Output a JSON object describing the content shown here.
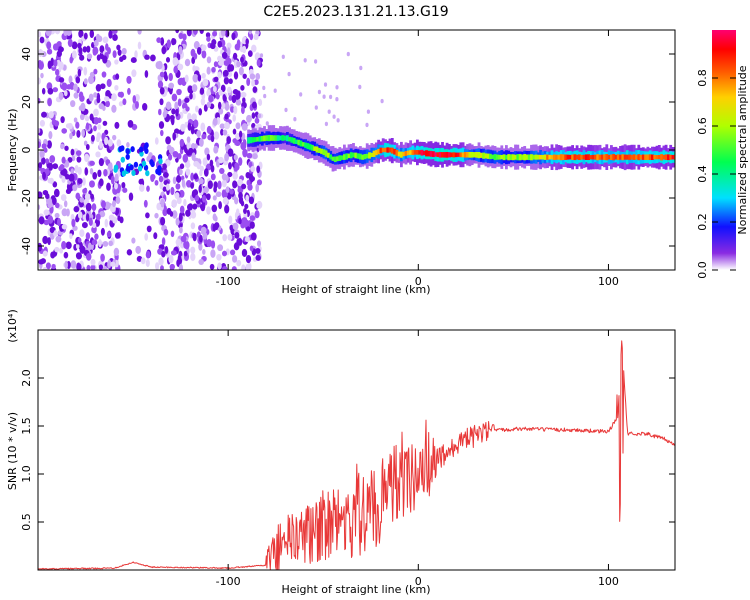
{
  "title": "C2E5.2023.131.21.13.G19",
  "chart_data": [
    {
      "type": "heatmap",
      "xlabel": "Height of straight line (km)",
      "ylabel": "Frequency (Hz)",
      "xlim": [
        -200,
        135
      ],
      "ylim": [
        -50,
        50
      ],
      "xticks": [
        -100,
        0,
        100
      ],
      "yticks": [
        -40,
        -20,
        0,
        20,
        40
      ],
      "colorbar": {
        "label": "Normalized spectral amplitude",
        "range": [
          0,
          1
        ],
        "ticks": [
          0.0,
          0.2,
          0.4,
          0.6,
          0.8
        ]
      },
      "noise_region": {
        "x": [
          -200,
          -83
        ],
        "y": [
          -50,
          50
        ],
        "gap": [
          -157,
          -136
        ]
      },
      "ridge": {
        "x": [
          -90,
          -80,
          -70,
          -60,
          -50,
          -45,
          -40,
          -35,
          -30,
          -25,
          -20,
          -15,
          -10,
          -5,
          0,
          10,
          20,
          30,
          40,
          50,
          60,
          70,
          80,
          90,
          100,
          110,
          120,
          135
        ],
        "frequency": [
          4,
          5,
          5,
          2,
          -1,
          -4,
          -3,
          -2,
          -3,
          -2,
          0,
          0,
          -2,
          -1,
          -1,
          -2,
          -2,
          -2,
          -3,
          -3,
          -3,
          -3,
          -3,
          -3,
          -3,
          -3,
          -3,
          -3
        ],
        "amplitude": [
          0.45,
          0.5,
          0.4,
          0.5,
          0.6,
          0.5,
          0.55,
          0.5,
          0.55,
          0.6,
          0.85,
          0.9,
          0.7,
          0.75,
          0.9,
          0.95,
          0.9,
          0.6,
          0.55,
          0.55,
          0.6,
          0.8,
          0.85,
          0.85,
          0.8,
          0.85,
          0.85,
          0.9
        ]
      }
    },
    {
      "type": "line",
      "xlabel": "Height of straight line (km)",
      "ylabel": "SNR (10 * v/v)",
      "yunit": "(x10⁴)",
      "xlim": [
        -200,
        135
      ],
      "ylim": [
        0,
        2.5
      ],
      "xticks": [
        -100,
        0,
        100
      ],
      "yticks": [
        0.5,
        1.0,
        1.5,
        2.0
      ],
      "ytick_labels": [
        "0.5",
        "1.0",
        "1.5",
        "2.0"
      ],
      "color": "#e83838",
      "series": [
        {
          "x": [
            -200,
            -160,
            -150,
            -140,
            -100,
            -80,
            -75,
            -70,
            -60,
            -50,
            -40,
            -30,
            -20,
            -10,
            0,
            10,
            20,
            30,
            40,
            50,
            60,
            70,
            80,
            90,
            100,
            105,
            107,
            110,
            120,
            130,
            135
          ],
          "y": [
            0.01,
            0.02,
            0.08,
            0.03,
            0.02,
            0.05,
            0.2,
            0.3,
            0.35,
            0.45,
            0.5,
            0.55,
            0.7,
            0.9,
            1.0,
            1.15,
            1.3,
            1.4,
            1.45,
            1.47,
            1.47,
            1.46,
            1.46,
            1.45,
            1.44,
            1.6,
            2.4,
            1.42,
            1.42,
            1.36,
            1.3
          ]
        }
      ]
    }
  ]
}
